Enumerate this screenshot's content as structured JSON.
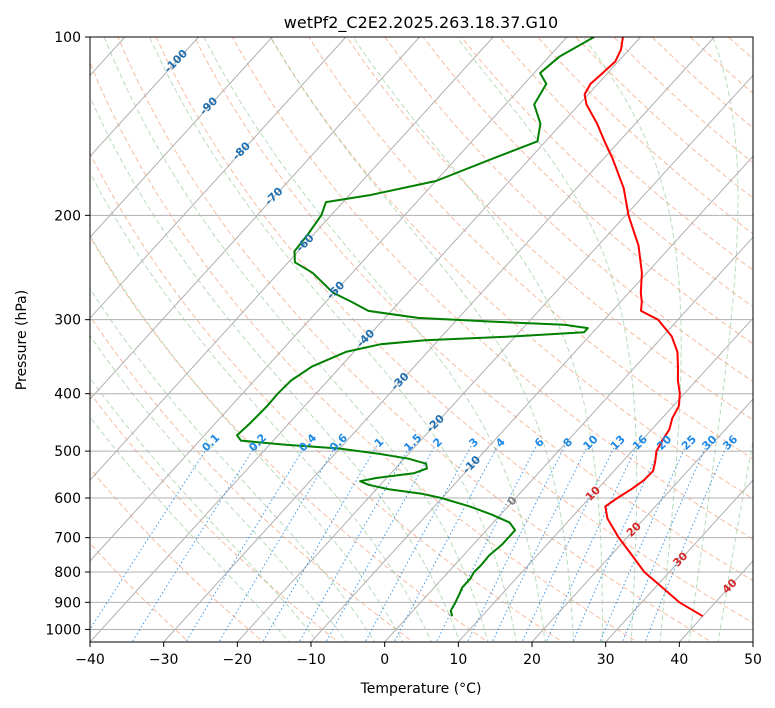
{
  "chart_data": {
    "type": "skew-t",
    "title": "wetPf2_C2E2.2025.263.18.37.G10",
    "xlabel": "Temperature (°C)",
    "ylabel": "Pressure (hPa)",
    "xlim": [
      -40,
      50
    ],
    "ylim": [
      1050,
      100
    ],
    "x_ticks": [
      -40,
      -30,
      -20,
      -10,
      0,
      10,
      20,
      30,
      40,
      50
    ],
    "x_tick_labels": [
      "−40",
      "−30",
      "−20",
      "−10",
      "0",
      "10",
      "20",
      "30",
      "40",
      "50"
    ],
    "y_ticks": [
      100,
      200,
      300,
      400,
      500,
      600,
      700,
      800,
      900,
      1000
    ],
    "y_tick_labels": [
      "100",
      "200",
      "300",
      "400",
      "500",
      "600",
      "700",
      "800",
      "900",
      "1000"
    ],
    "isotherm_labels": {
      "values": [
        -100,
        -90,
        -80,
        -70,
        -60,
        -50,
        -40,
        -30,
        -20,
        -10,
        0
      ],
      "text": [
        "-100",
        "-90",
        "-80",
        "-70",
        "-60",
        "-50",
        "-40",
        "-30",
        "-20",
        "-10",
        "0"
      ],
      "color_cold": "#1f6fb0",
      "color_zero": "#7f7f7f"
    },
    "moist_adiabat_labels": {
      "values": [
        10,
        20,
        30,
        40
      ],
      "text": [
        "10",
        "20",
        "30",
        "40"
      ],
      "color": "#d62728"
    },
    "mixing_ratio_labels": {
      "values": [
        0.1,
        0.2,
        0.4,
        0.6,
        1,
        1.5,
        2,
        3,
        4,
        6,
        8,
        10,
        13,
        16,
        20,
        25,
        30,
        36
      ],
      "text": [
        "0.1",
        "0.2",
        "0.4",
        "0.6",
        "1",
        "1.5",
        "2",
        "3",
        "4",
        "6",
        "8",
        "10",
        "13",
        "16",
        "20",
        "25",
        "30",
        "36"
      ],
      "color": "#1e88e5"
    },
    "series": [
      {
        "name": "temperature",
        "color": "#ff0000",
        "points": [
          [
            950,
            40.0
          ],
          [
            900,
            35.1
          ],
          [
            850,
            31.0
          ],
          [
            800,
            26.6
          ],
          [
            750,
            22.9
          ],
          [
            700,
            18.9
          ],
          [
            650,
            15.0
          ],
          [
            620,
            13.2
          ],
          [
            600,
            13.8
          ],
          [
            580,
            14.6
          ],
          [
            560,
            15.2
          ],
          [
            540,
            15.3
          ],
          [
            520,
            14.4
          ],
          [
            500,
            13.3
          ],
          [
            480,
            12.8
          ],
          [
            460,
            12.4
          ],
          [
            440,
            11.4
          ],
          [
            420,
            10.8
          ],
          [
            400,
            9.4
          ],
          [
            380,
            7.5
          ],
          [
            360,
            5.8
          ],
          [
            340,
            3.9
          ],
          [
            320,
            1.2
          ],
          [
            300,
            -2.7
          ],
          [
            290,
            -6.1
          ],
          [
            280,
            -7.1
          ],
          [
            270,
            -8.4
          ],
          [
            250,
            -10.7
          ],
          [
            225,
            -14.5
          ],
          [
            200,
            -19.6
          ],
          [
            180,
            -23.6
          ],
          [
            160,
            -28.9
          ],
          [
            150,
            -32.0
          ],
          [
            140,
            -35.2
          ],
          [
            130,
            -39.0
          ],
          [
            125,
            -40.5
          ],
          [
            120,
            -41.0
          ],
          [
            115,
            -40.7
          ],
          [
            110,
            -40.4
          ],
          [
            105,
            -41.1
          ],
          [
            100,
            -42.4
          ]
        ]
      },
      {
        "name": "dewpoint",
        "color": "#008000",
        "points": [
          [
            950,
            6.0
          ],
          [
            930,
            5.1
          ],
          [
            900,
            4.7
          ],
          [
            870,
            4.2
          ],
          [
            850,
            3.8
          ],
          [
            820,
            3.8
          ],
          [
            800,
            3.5
          ],
          [
            780,
            3.6
          ],
          [
            750,
            3.5
          ],
          [
            720,
            3.9
          ],
          [
            700,
            3.9
          ],
          [
            680,
            3.9
          ],
          [
            660,
            2.2
          ],
          [
            640,
            -1.2
          ],
          [
            620,
            -5.2
          ],
          [
            600,
            -10.1
          ],
          [
            590,
            -13.3
          ],
          [
            580,
            -18.3
          ],
          [
            570,
            -21.6
          ],
          [
            562,
            -23.2
          ],
          [
            555,
            -21.4
          ],
          [
            545,
            -16.9
          ],
          [
            535,
            -15.7
          ],
          [
            525,
            -16.4
          ],
          [
            515,
            -19.4
          ],
          [
            505,
            -24.1
          ],
          [
            495,
            -30.1
          ],
          [
            488,
            -37.6
          ],
          [
            480,
            -44.4
          ],
          [
            470,
            -45.6
          ],
          [
            450,
            -45.3
          ],
          [
            420,
            -45.1
          ],
          [
            400,
            -45.2
          ],
          [
            380,
            -45.0
          ],
          [
            360,
            -43.9
          ],
          [
            340,
            -41.1
          ],
          [
            330,
            -37.3
          ],
          [
            325,
            -31.8
          ],
          [
            320,
            -19.9
          ],
          [
            315,
            -11.2
          ],
          [
            310,
            -11.2
          ],
          [
            306,
            -14.8
          ],
          [
            302,
            -25.7
          ],
          [
            298,
            -35.5
          ],
          [
            290,
            -43.1
          ],
          [
            280,
            -46.5
          ],
          [
            270,
            -50.2
          ],
          [
            250,
            -55.4
          ],
          [
            240,
            -59.1
          ],
          [
            230,
            -60.5
          ],
          [
            215,
            -60.8
          ],
          [
            200,
            -61.3
          ],
          [
            190,
            -62.3
          ],
          [
            185,
            -57.3
          ],
          [
            175,
            -50.0
          ],
          [
            160,
            -44.9
          ],
          [
            150,
            -41.1
          ],
          [
            140,
            -42.9
          ],
          [
            130,
            -46.1
          ],
          [
            120,
            -47.0
          ],
          [
            115,
            -49.2
          ],
          [
            108,
            -48.6
          ],
          [
            100,
            -46.3
          ]
        ]
      }
    ],
    "grid": true
  }
}
